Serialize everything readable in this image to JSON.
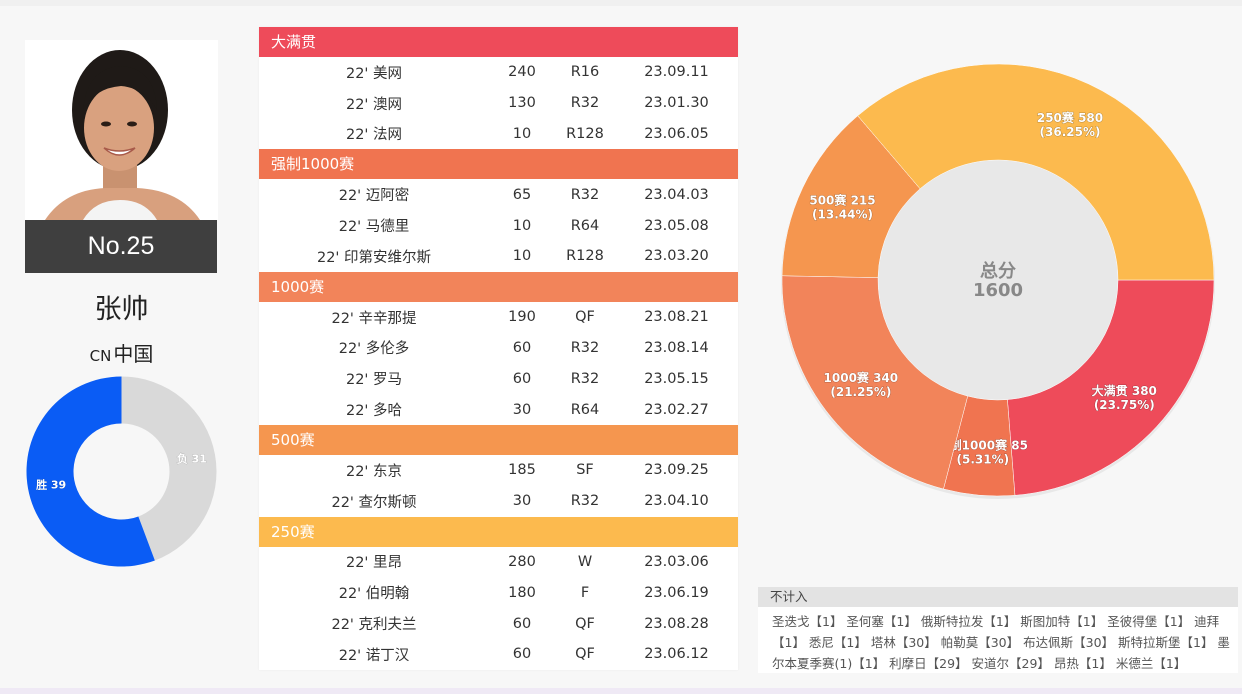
{
  "player": {
    "rank": "No.25",
    "name": "张帅",
    "country_code": "CN",
    "country": "中国"
  },
  "winloss": {
    "win_label": "胜 39",
    "loss_label": "负 31",
    "wins": 39,
    "losses": 31,
    "win_color": "#0a5cf5",
    "loss_color": "#d9d9d9"
  },
  "categories": [
    {
      "title": "大满贯",
      "color": "#ee4b5a",
      "rows": [
        {
          "event": "22' 美网",
          "points": "240",
          "round": "R16",
          "date": "23.09.11"
        },
        {
          "event": "22' 澳网",
          "points": "130",
          "round": "R32",
          "date": "23.01.30"
        },
        {
          "event": "22' 法网",
          "points": "10",
          "round": "R128",
          "date": "23.06.05"
        }
      ]
    },
    {
      "title": "强制1000赛",
      "color": "#f07450",
      "rows": [
        {
          "event": "22' 迈阿密",
          "points": "65",
          "round": "R32",
          "date": "23.04.03"
        },
        {
          "event": "22' 马德里",
          "points": "10",
          "round": "R64",
          "date": "23.05.08"
        },
        {
          "event": "22' 印第安维尔斯",
          "points": "10",
          "round": "R128",
          "date": "23.03.20"
        }
      ]
    },
    {
      "title": "1000赛",
      "color": "#f2845a",
      "rows": [
        {
          "event": "22' 辛辛那提",
          "points": "190",
          "round": "QF",
          "date": "23.08.21"
        },
        {
          "event": "22' 多伦多",
          "points": "60",
          "round": "R32",
          "date": "23.08.14"
        },
        {
          "event": "22' 罗马",
          "points": "60",
          "round": "R32",
          "date": "23.05.15"
        },
        {
          "event": "22' 多哈",
          "points": "30",
          "round": "R64",
          "date": "23.02.27"
        }
      ]
    },
    {
      "title": "500赛",
      "color": "#f5964f",
      "rows": [
        {
          "event": "22' 东京",
          "points": "185",
          "round": "SF",
          "date": "23.09.25"
        },
        {
          "event": "22' 查尔斯顿",
          "points": "30",
          "round": "R32",
          "date": "23.04.10"
        }
      ]
    },
    {
      "title": "250赛",
      "color": "#fcba4e",
      "rows": [
        {
          "event": "22' 里昂",
          "points": "280",
          "round": "W",
          "date": "23.03.06"
        },
        {
          "event": "22' 伯明翰",
          "points": "180",
          "round": "F",
          "date": "23.06.19"
        },
        {
          "event": "22' 克利夫兰",
          "points": "60",
          "round": "QF",
          "date": "23.08.28"
        },
        {
          "event": "22' 诺丁汉",
          "points": "60",
          "round": "QF",
          "date": "23.06.12"
        }
      ]
    }
  ],
  "chart_data": {
    "type": "pie",
    "center_label": "总分",
    "center_value": "1600",
    "slices": [
      {
        "name": "大满贯",
        "value": 380,
        "percent": "23.75%",
        "label": "大满贯 380",
        "pct_label": "(23.75%)",
        "color": "#ee4b5a"
      },
      {
        "name": "强制1000赛",
        "value": 85,
        "percent": "5.31%",
        "label": "强制1000赛 85",
        "pct_label": "(5.31%)",
        "color": "#f07450"
      },
      {
        "name": "1000赛",
        "value": 340,
        "percent": "21.25%",
        "label": "1000赛 340",
        "pct_label": "(21.25%)",
        "color": "#f2845a"
      },
      {
        "name": "500赛",
        "value": 215,
        "percent": "13.44%",
        "label": "500赛 215",
        "pct_label": "(13.44%)",
        "color": "#f5964f"
      },
      {
        "name": "250赛",
        "value": 580,
        "percent": "36.25%",
        "label": "250赛 580",
        "pct_label": "(36.25%)",
        "color": "#fcba4e"
      }
    ]
  },
  "excluded": {
    "title": "不计入",
    "text": "圣迭戈【1】 圣何塞【1】 俄斯特拉发【1】 斯图加特【1】 圣彼得堡【1】 迪拜【1】 悉尼【1】 塔林【30】 帕勒莫【30】 布达佩斯【30】 斯特拉斯堡【1】 墨尔本夏季赛(1)【1】 利摩日【29】 安道尔【29】 昂热【1】 米德兰【1】"
  }
}
